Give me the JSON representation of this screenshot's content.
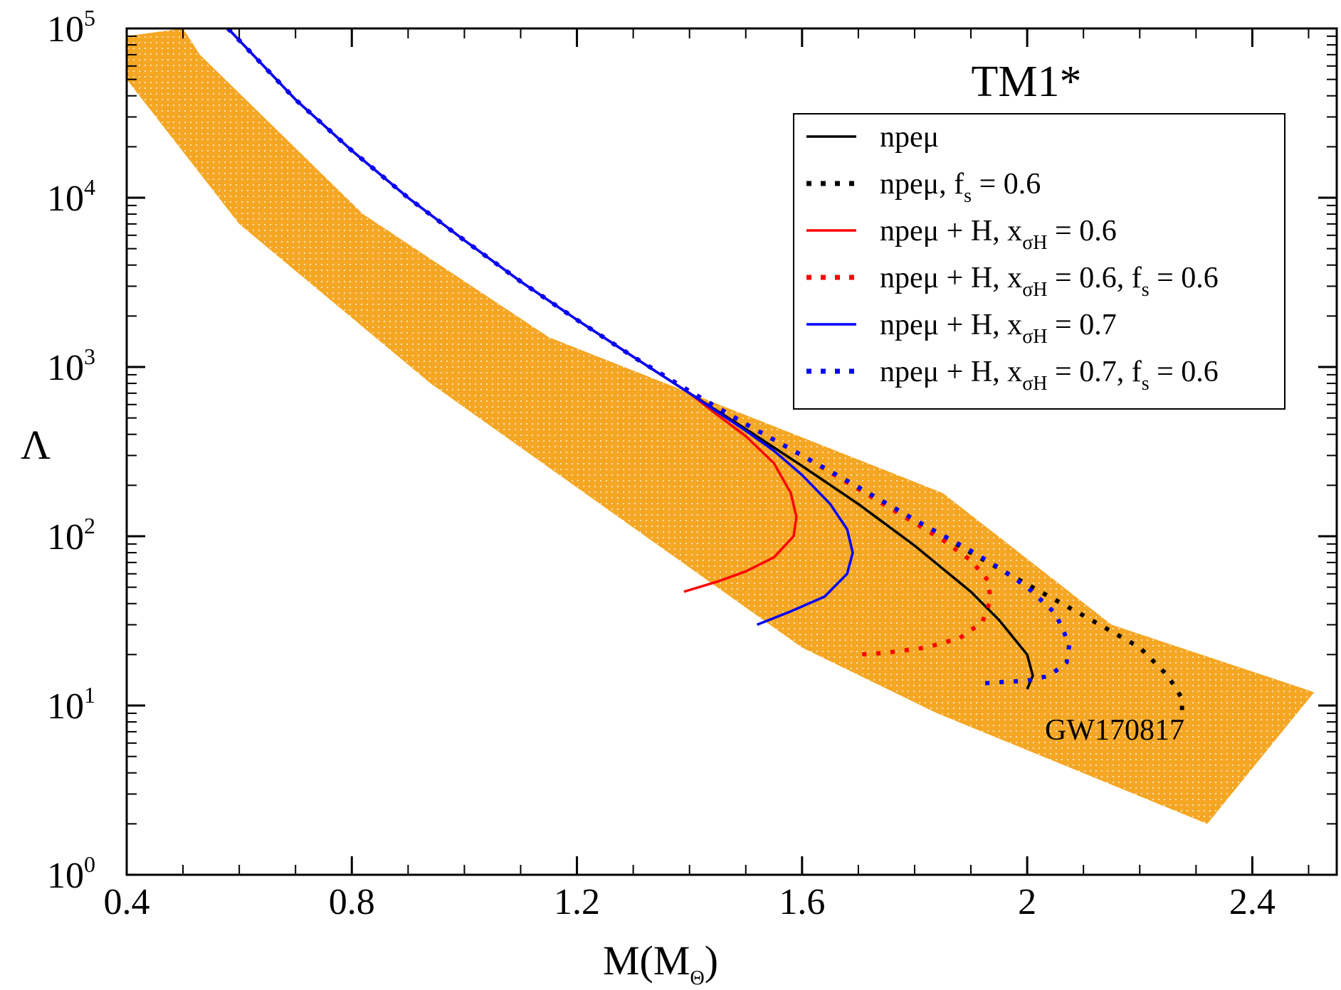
{
  "chart_data": {
    "type": "line",
    "title": "TM1*",
    "xlabel": "M(M",
    "xlabel_sub": "Θ",
    "xlabel_close": ")",
    "ylabel": "Λ",
    "xlim": [
      0.4,
      2.55
    ],
    "ylim_log10": [
      0,
      5
    ],
    "yscale": "log",
    "xticks": [
      {
        "value": 0.4,
        "label": "0.4"
      },
      {
        "value": 0.8,
        "label": "0.8"
      },
      {
        "value": 1.2,
        "label": "1.2"
      },
      {
        "value": 1.6,
        "label": "1.6"
      },
      {
        "value": 2.0,
        "label": "2"
      },
      {
        "value": 2.4,
        "label": "2.4"
      }
    ],
    "yticks": [
      {
        "exp": 0,
        "base": "10",
        "sup": "0"
      },
      {
        "exp": 1,
        "base": "10",
        "sup": "1"
      },
      {
        "exp": 2,
        "base": "10",
        "sup": "2"
      },
      {
        "exp": 3,
        "base": "10",
        "sup": "3"
      },
      {
        "exp": 4,
        "base": "10",
        "sup": "4"
      },
      {
        "exp": 5,
        "base": "10",
        "sup": "5"
      }
    ],
    "band": {
      "label": "GW170817",
      "color": "#f5a623",
      "polygon": [
        [
          0.4,
          90000
        ],
        [
          0.5,
          100000
        ],
        [
          0.53,
          70000
        ],
        [
          0.82,
          8000
        ],
        [
          1.15,
          1500
        ],
        [
          1.85,
          180
        ],
        [
          2.15,
          30
        ],
        [
          2.51,
          12
        ],
        [
          2.32,
          2
        ],
        [
          1.84,
          9
        ],
        [
          1.6,
          22
        ],
        [
          0.94,
          800
        ],
        [
          0.6,
          7000
        ],
        [
          0.4,
          50000
        ]
      ]
    },
    "series": [
      {
        "name": "npeμ",
        "label_base": "npeμ",
        "label_rest": "",
        "color": "#000000",
        "dash": "solid",
        "x": [
          0.58,
          0.7,
          0.8,
          0.9,
          1.0,
          1.1,
          1.2,
          1.3,
          1.4,
          1.5,
          1.6,
          1.7,
          1.8,
          1.9,
          1.95,
          2.0,
          2.01,
          2.0
        ],
        "y": [
          100000,
          38000,
          19000,
          10000,
          5600,
          3200,
          1900,
          1150,
          700,
          430,
          260,
          155,
          88,
          47,
          32,
          20,
          15,
          12.5
        ]
      },
      {
        "name": "npeμ, fs = 0.6",
        "label_base": "npeμ, f",
        "label_rest": " = 0.6",
        "label_sub": "s",
        "color": "#000000",
        "dash": "dotted",
        "x": [
          0.58,
          0.7,
          0.8,
          0.9,
          1.0,
          1.1,
          1.2,
          1.3,
          1.4,
          1.5,
          1.6,
          1.7,
          1.8,
          1.9,
          2.0,
          2.1,
          2.2,
          2.25,
          2.275,
          2.275
        ],
        "y": [
          100000,
          38000,
          19000,
          10000,
          5600,
          3200,
          1900,
          1150,
          720,
          460,
          300,
          195,
          125,
          80,
          52,
          34,
          22,
          15,
          11,
          9
        ]
      },
      {
        "name": "npeμ + H, xσH = 0.6",
        "label_base": "npeμ + H, x",
        "label_sub": "σH",
        "label_rest": " = 0.6",
        "color": "#ff0000",
        "dash": "solid",
        "x": [
          0.58,
          0.7,
          0.8,
          0.9,
          1.0,
          1.1,
          1.2,
          1.3,
          1.4,
          1.45,
          1.5,
          1.55,
          1.58,
          1.59,
          1.585,
          1.55,
          1.5,
          1.45,
          1.39
        ],
        "y": [
          100000,
          38000,
          19000,
          10000,
          5600,
          3200,
          1900,
          1150,
          700,
          520,
          390,
          270,
          180,
          130,
          100,
          75,
          62,
          54,
          47
        ]
      },
      {
        "name": "npeμ + H, xσH = 0.6, fs = 0.6",
        "label_base": "npeμ + H, x",
        "label_sub": "σH",
        "label_rest": " = 0.6, f",
        "label_sub2": "s",
        "label_rest2": " = 0.6",
        "color": "#ff0000",
        "dash": "dotted",
        "x": [
          0.58,
          0.7,
          0.8,
          0.9,
          1.0,
          1.1,
          1.2,
          1.3,
          1.4,
          1.5,
          1.6,
          1.7,
          1.8,
          1.85,
          1.9,
          1.93,
          1.935,
          1.92,
          1.88,
          1.82,
          1.75,
          1.7
        ],
        "y": [
          100000,
          38000,
          19000,
          10000,
          5600,
          3200,
          1900,
          1150,
          720,
          460,
          300,
          190,
          120,
          95,
          72,
          55,
          42,
          31,
          25,
          22,
          20.5,
          20
        ]
      },
      {
        "name": "npeμ + H, xσH = 0.7",
        "label_base": "npeμ + H, x",
        "label_sub": "σH",
        "label_rest": " = 0.7",
        "color": "#0000ff",
        "dash": "solid",
        "x": [
          0.58,
          0.7,
          0.8,
          0.9,
          1.0,
          1.1,
          1.2,
          1.3,
          1.4,
          1.5,
          1.55,
          1.6,
          1.65,
          1.68,
          1.69,
          1.68,
          1.64,
          1.58,
          1.52
        ],
        "y": [
          100000,
          38000,
          19000,
          10000,
          5600,
          3200,
          1900,
          1150,
          700,
          420,
          320,
          230,
          155,
          110,
          80,
          60,
          44,
          36,
          30
        ]
      },
      {
        "name": "npeμ + H, xσH = 0.7, fs = 0.6",
        "label_base": "npeμ + H, x",
        "label_sub": "σH",
        "label_rest": " = 0.7, f",
        "label_sub2": "s",
        "label_rest2": " = 0.6",
        "color": "#0000ff",
        "dash": "dotted",
        "x": [
          0.58,
          0.7,
          0.8,
          0.9,
          1.0,
          1.1,
          1.2,
          1.3,
          1.4,
          1.5,
          1.6,
          1.7,
          1.8,
          1.9,
          1.95,
          2.0,
          2.05,
          2.075,
          2.07,
          2.04,
          2.0,
          1.96,
          1.92
        ],
        "y": [
          100000,
          38000,
          19000,
          10000,
          5600,
          3200,
          1900,
          1150,
          720,
          460,
          300,
          195,
          125,
          82,
          65,
          50,
          35,
          23,
          18,
          15,
          14,
          13.8,
          13.5
        ]
      }
    ]
  }
}
